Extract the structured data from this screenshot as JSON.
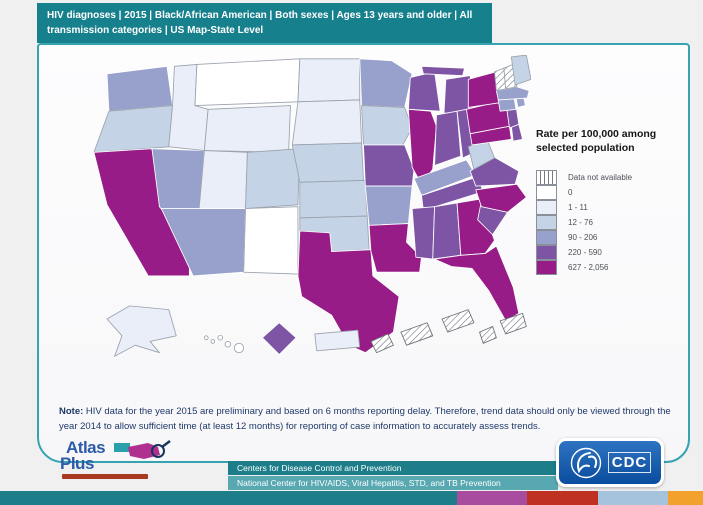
{
  "header": {
    "title": "HIV diagnoses | 2015 | Black/African American | Both sexes | Ages 13 years and older | All transmission categories | US Map-State Level"
  },
  "chart_data": {
    "type": "choropleth",
    "title": "HIV diagnoses | 2015 | Black/African American | Both sexes | Ages 13 years and older | All transmission categories | US Map-State Level",
    "legend_title": "Rate per 100,000 among selected population",
    "legend_position": "right",
    "bins": [
      {
        "key": "na",
        "label": "Data not available",
        "fill": "hatch"
      },
      {
        "key": "b0",
        "label": "0",
        "fill": "#ffffff"
      },
      {
        "key": "b1",
        "label": "1 - 11",
        "fill": "#e9eef8"
      },
      {
        "key": "b2",
        "label": "12 - 76",
        "fill": "#c5d3e7"
      },
      {
        "key": "b3",
        "label": "90 - 206",
        "fill": "#98a0cc"
      },
      {
        "key": "b4",
        "label": "220 - 590",
        "fill": "#7e55a5"
      },
      {
        "key": "b5",
        "label": "627 - 2,056",
        "fill": "#981c87"
      }
    ],
    "states": [
      {
        "id": "WA",
        "name": "Washington",
        "bin": "b3"
      },
      {
        "id": "OR",
        "name": "Oregon",
        "bin": "b2"
      },
      {
        "id": "CA",
        "name": "California",
        "bin": "b5"
      },
      {
        "id": "NV",
        "name": "Nevada",
        "bin": "b3"
      },
      {
        "id": "ID",
        "name": "Idaho",
        "bin": "b1"
      },
      {
        "id": "MT",
        "name": "Montana",
        "bin": "b0"
      },
      {
        "id": "WY",
        "name": "Wyoming",
        "bin": "b1"
      },
      {
        "id": "UT",
        "name": "Utah",
        "bin": "b1"
      },
      {
        "id": "CO",
        "name": "Colorado",
        "bin": "b2"
      },
      {
        "id": "AZ",
        "name": "Arizona",
        "bin": "b3"
      },
      {
        "id": "NM",
        "name": "New Mexico",
        "bin": "b0"
      },
      {
        "id": "ND",
        "name": "North Dakota",
        "bin": "b1"
      },
      {
        "id": "SD",
        "name": "South Dakota",
        "bin": "b1"
      },
      {
        "id": "NE",
        "name": "Nebraska",
        "bin": "b2"
      },
      {
        "id": "KS",
        "name": "Kansas",
        "bin": "b2"
      },
      {
        "id": "OK",
        "name": "Oklahoma",
        "bin": "b2"
      },
      {
        "id": "TX",
        "name": "Texas",
        "bin": "b5"
      },
      {
        "id": "MN",
        "name": "Minnesota",
        "bin": "b3"
      },
      {
        "id": "IA",
        "name": "Iowa",
        "bin": "b2"
      },
      {
        "id": "MO",
        "name": "Missouri",
        "bin": "b4"
      },
      {
        "id": "AR",
        "name": "Arkansas",
        "bin": "b3"
      },
      {
        "id": "LA",
        "name": "Louisiana",
        "bin": "b5"
      },
      {
        "id": "WI",
        "name": "Wisconsin",
        "bin": "b4"
      },
      {
        "id": "IL",
        "name": "Illinois",
        "bin": "b5"
      },
      {
        "id": "MI",
        "name": "Michigan",
        "bin": "b4"
      },
      {
        "id": "IN",
        "name": "Indiana",
        "bin": "b4"
      },
      {
        "id": "OH",
        "name": "Ohio",
        "bin": "b4"
      },
      {
        "id": "KY",
        "name": "Kentucky",
        "bin": "b3"
      },
      {
        "id": "TN",
        "name": "Tennessee",
        "bin": "b4"
      },
      {
        "id": "MS",
        "name": "Mississippi",
        "bin": "b4"
      },
      {
        "id": "AL",
        "name": "Alabama",
        "bin": "b4"
      },
      {
        "id": "GA",
        "name": "Georgia",
        "bin": "b5"
      },
      {
        "id": "FL",
        "name": "Florida",
        "bin": "b5"
      },
      {
        "id": "SC",
        "name": "South Carolina",
        "bin": "b4"
      },
      {
        "id": "NC",
        "name": "North Carolina",
        "bin": "b5"
      },
      {
        "id": "VA",
        "name": "Virginia",
        "bin": "b4"
      },
      {
        "id": "WV",
        "name": "West Virginia",
        "bin": "b2"
      },
      {
        "id": "MD",
        "name": "Maryland",
        "bin": "b5"
      },
      {
        "id": "DE",
        "name": "Delaware",
        "bin": "b4"
      },
      {
        "id": "PA",
        "name": "Pennsylvania",
        "bin": "b5"
      },
      {
        "id": "NJ",
        "name": "New Jersey",
        "bin": "b4"
      },
      {
        "id": "NY",
        "name": "New York",
        "bin": "b5"
      },
      {
        "id": "CT",
        "name": "Connecticut",
        "bin": "b3"
      },
      {
        "id": "RI",
        "name": "Rhode Island",
        "bin": "b3"
      },
      {
        "id": "MA",
        "name": "Massachusetts",
        "bin": "b3"
      },
      {
        "id": "VT",
        "name": "Vermont",
        "bin": "na"
      },
      {
        "id": "NH",
        "name": "New Hampshire",
        "bin": "na"
      },
      {
        "id": "ME",
        "name": "Maine",
        "bin": "b2"
      },
      {
        "id": "AK",
        "name": "Alaska",
        "bin": "b1"
      },
      {
        "id": "HI",
        "name": "Hawaii",
        "bin": "b0"
      },
      {
        "id": "DC",
        "name": "District of Columbia",
        "bin": "b4"
      },
      {
        "id": "PR",
        "name": "Puerto Rico",
        "bin": "b1"
      }
    ],
    "territories_data_not_available_count": 5
  },
  "note": {
    "label": "Note:",
    "text": " HIV data for the year 2015 are preliminary and based on 6 months reporting delay. Therefore, trend data should only be viewed through the year 2014 to allow sufficient time (at least 12 months) for reporting of case information to accurately assess trends."
  },
  "footer": {
    "line1": "Centers for Disease Control and Prevention",
    "line2": "National Center for HIV/AIDS, Viral Hepatitis, STD, and TB Prevention"
  },
  "logos": {
    "atlas_line1": "Atlas",
    "atlas_line2": "Plus",
    "cdc_label": "CDC"
  },
  "colors": {
    "teal": "#17808d",
    "card_border": "#35a3b0",
    "footer_teal": "#1d7e8a",
    "footer_teal_light": "#58a8b2",
    "stripe_teal": "#1d7e8a",
    "stripe_purple": "#a84c9f",
    "stripe_red": "#bf3222",
    "stripe_blue": "#a6c3dd",
    "stripe_orange": "#f2a12d",
    "note_text": "#1f3968",
    "atlas_blue": "#2c5ba8",
    "cdc_blue": "#0a4c9d"
  }
}
